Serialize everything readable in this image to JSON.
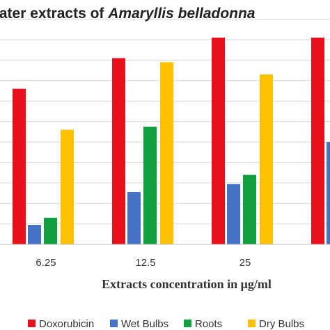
{
  "chart_data": {
    "type": "bar",
    "title_prefix": "Vater extracts of ",
    "title_species": "Amaryllis belladonna",
    "xlabel": "Extracts concentration in μg/ml",
    "ylabel": "",
    "categories": [
      "6.25",
      "12.5",
      "25",
      ""
    ],
    "series": [
      {
        "name": "Doxorubicin",
        "color": "#e8101a",
        "values": [
          76,
          91,
          101,
          101
        ]
      },
      {
        "name": "Wet Bulbs",
        "color": "#4472c4",
        "values": [
          9.5,
          25.5,
          29.5,
          50
        ]
      },
      {
        "name": "Roots",
        "color": "#10a040",
        "values": [
          13,
          57.5,
          34,
          null
        ]
      },
      {
        "name": "Dry Bulbs",
        "color": "#ffc000",
        "values": [
          56,
          89,
          83,
          null
        ]
      }
    ],
    "ylim": [
      0,
      110
    ],
    "grid": true,
    "legend_position": "bottom"
  }
}
